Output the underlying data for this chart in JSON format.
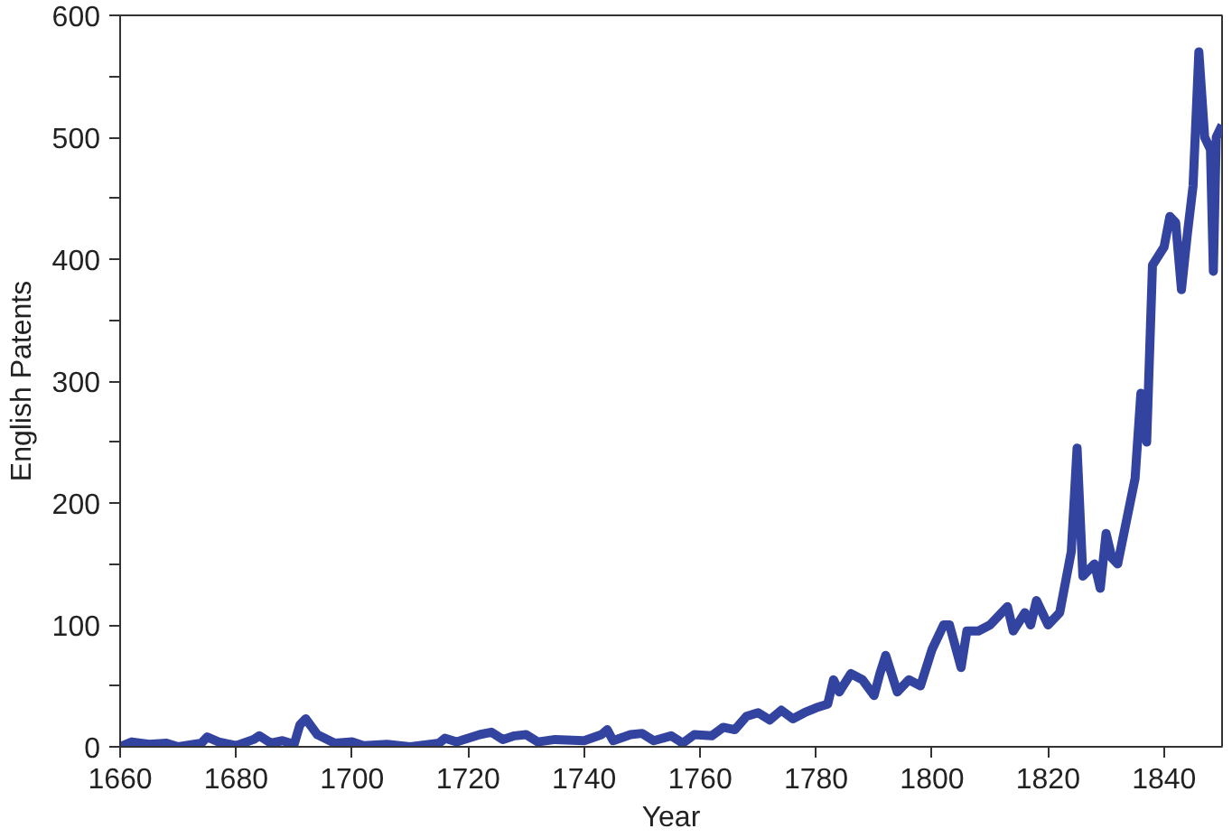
{
  "chart_data": {
    "type": "line",
    "xlabel": "Year",
    "ylabel": "English Patents",
    "xlim": [
      1660,
      1850
    ],
    "ylim": [
      0,
      600
    ],
    "xticks": [
      1660,
      1680,
      1700,
      1720,
      1740,
      1760,
      1780,
      1800,
      1820,
      1840
    ],
    "yticks": [
      0,
      {
        "value": 50,
        "label": null
      },
      100,
      {
        "value": 150,
        "label": null
      },
      200,
      {
        "value": 250,
        "label": null
      },
      300,
      {
        "value": 350,
        "label": null
      },
      400,
      {
        "value": 450,
        "label": null
      },
      500,
      {
        "value": 550,
        "label": null
      },
      600
    ],
    "line_style": "solid",
    "series": [
      {
        "color": "#3343a0",
        "x": [
          1660,
          1662,
          1665,
          1668,
          1670,
          1674,
          1675,
          1677,
          1680,
          1683,
          1684,
          1686,
          1688,
          1690,
          1691,
          1692,
          1694,
          1697,
          1700,
          1702,
          1706,
          1710,
          1715,
          1716,
          1718,
          1722,
          1724,
          1726,
          1728,
          1730,
          1732,
          1735,
          1740,
          1743,
          1744,
          1745,
          1748,
          1750,
          1752,
          1755,
          1757,
          1759,
          1762,
          1764,
          1766,
          1768,
          1770,
          1772,
          1774,
          1776,
          1778,
          1780,
          1782,
          1783,
          1784,
          1786,
          1788,
          1790,
          1791,
          1792,
          1794,
          1796,
          1798,
          1800,
          1802,
          1803,
          1805,
          1806,
          1808,
          1810,
          1813,
          1814,
          1816,
          1817,
          1818,
          1820,
          1822,
          1824,
          1825,
          1826,
          1828,
          1829,
          1830,
          1831,
          1832,
          1835,
          1836,
          1837,
          1838,
          1840,
          1841,
          1842,
          1843,
          1844,
          1845,
          1846,
          1847,
          1848,
          1848.5,
          1849,
          1850
        ],
        "values": [
          0,
          4,
          2,
          3,
          0,
          3,
          8,
          4,
          1,
          6,
          9,
          3,
          5,
          2,
          18,
          23,
          10,
          3,
          4,
          1,
          2,
          0,
          3,
          7,
          4,
          10,
          12,
          6,
          9,
          10,
          4,
          6,
          5,
          10,
          14,
          5,
          10,
          11,
          5,
          9,
          3,
          10,
          9,
          16,
          14,
          25,
          28,
          22,
          30,
          23,
          28,
          32,
          35,
          55,
          45,
          60,
          55,
          42,
          60,
          75,
          45,
          55,
          50,
          80,
          100,
          100,
          65,
          95,
          95,
          100,
          115,
          95,
          110,
          100,
          120,
          100,
          110,
          160,
          245,
          140,
          150,
          130,
          175,
          155,
          150,
          220,
          290,
          250,
          395,
          410,
          435,
          430,
          375,
          420,
          460,
          570,
          500,
          490,
          390,
          500,
          510
        ]
      }
    ]
  }
}
